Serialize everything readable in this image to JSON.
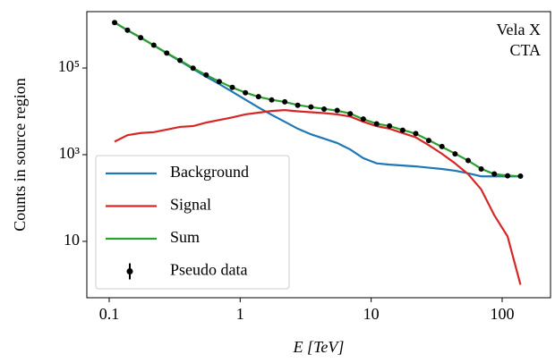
{
  "chart_data": {
    "type": "line",
    "x_label": "E [TeV]",
    "y_label": "Counts in source region",
    "annotations": [
      "Vela X",
      "CTA"
    ],
    "log_x": true,
    "log_y": true,
    "legend": "lower left",
    "xlim": [
      0.0675,
      234
    ],
    "ylim": [
      0.5,
      2000000
    ],
    "xticks": [
      0.1,
      1,
      10,
      100
    ],
    "yticks": [
      10,
      {
        "value": 1000,
        "label": "10³"
      },
      {
        "value": 100000,
        "label": "10⁵"
      }
    ],
    "x": [
      0.11,
      0.138,
      0.174,
      0.219,
      0.275,
      0.347,
      0.437,
      0.55,
      0.692,
      0.871,
      1.096,
      1.38,
      1.74,
      2.19,
      2.75,
      3.47,
      4.37,
      5.5,
      6.92,
      8.71,
      11.0,
      13.8,
      17.4,
      21.9,
      27.5,
      34.7,
      43.7,
      55.0,
      69.2,
      87.1,
      110,
      138
    ],
    "series": [
      {
        "name": "Background",
        "color": "#1f77b4",
        "mode": "line",
        "values": [
          1120000,
          741000,
          501000,
          331000,
          219000,
          145000,
          95500,
          63100,
          42700,
          28200,
          18600,
          12300,
          8300,
          5750,
          3980,
          2950,
          2340,
          1860,
          1320,
          832,
          631,
          589,
          562,
          537,
          501,
          468,
          427,
          372,
          316,
          316,
          316,
          316
        ]
      },
      {
        "name": "Signal",
        "color": "#d62728",
        "mode": "line",
        "values": [
          2000,
          2820,
          3160,
          3310,
          3800,
          4370,
          4570,
          5500,
          6310,
          7240,
          8510,
          9330,
          10200,
          10700,
          10000,
          9550,
          9120,
          8510,
          7590,
          5750,
          4570,
          3980,
          3160,
          2510,
          1660,
          1050,
          631,
          355,
          158,
          40,
          13,
          1
        ]
      },
      {
        "name": "Sum",
        "color": "#2ca02c",
        "mode": "line",
        "values": [
          1122000,
          743800,
          504200,
          334300,
          222800,
          149400,
          100100,
          68600,
          49010,
          35440,
          27110,
          21630,
          18500,
          16450,
          13980,
          12500,
          11460,
          10370,
          8910,
          6582,
          5201,
          4569,
          3722,
          3047,
          2161,
          1518,
          1058,
          727,
          474,
          356,
          329,
          317
        ]
      },
      {
        "name": "Pseudo data",
        "color": "#000000",
        "mode": "markers",
        "values": [
          1118000,
          746000,
          502000,
          336000,
          221000,
          150500,
          99300,
          69100,
          48700,
          35700,
          26900,
          21800,
          18300,
          16600,
          13800,
          12600,
          11300,
          10500,
          8800,
          6650,
          5150,
          4610,
          3680,
          3080,
          2130,
          1540,
          1040,
          735,
          468,
          360,
          325,
          320
        ]
      }
    ]
  }
}
